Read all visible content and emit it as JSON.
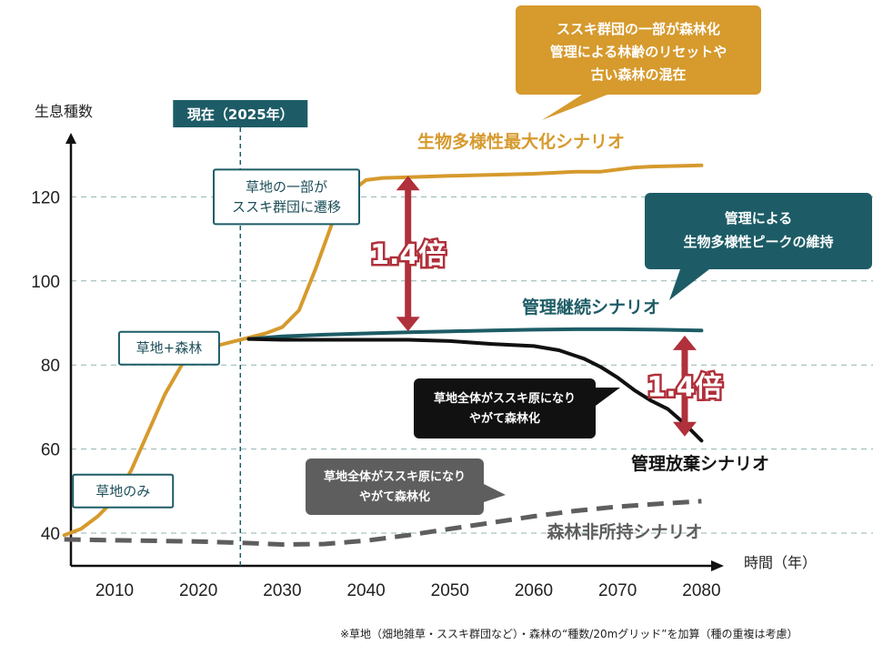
{
  "chart_data": {
    "type": "line",
    "ylabel": "生息種数",
    "xlabel": "時間（年）",
    "xticks": [
      2010,
      2020,
      2030,
      2040,
      2050,
      2060,
      2070,
      2080
    ],
    "yticks": [
      40,
      60,
      80,
      100,
      120
    ],
    "xlim": [
      2004,
      2084
    ],
    "ylim": [
      34,
      134
    ],
    "grid": "horizontal-dashed",
    "colors": {
      "maximize": "#d69a2d",
      "continue": "#1d5c66",
      "abandon": "#111111",
      "nonowner": "#5e5e5e",
      "ratio": "#b0303b"
    },
    "series": [
      {
        "name": "生物多様性最大化シナリオ",
        "style": "solid",
        "x": [
          2004,
          2006,
          2008,
          2010,
          2012,
          2014,
          2016,
          2018,
          2020,
          2022,
          2024,
          2026,
          2028,
          2030,
          2032,
          2034,
          2036,
          2038,
          2040,
          2042,
          2044,
          2050,
          2060,
          2065,
          2068,
          2070,
          2072,
          2074,
          2080
        ],
        "y": [
          39.5,
          41,
          44,
          48,
          55,
          64,
          73,
          80,
          83,
          84.5,
          85.5,
          86.5,
          87.5,
          89,
          93,
          103,
          114,
          121,
          124,
          124.5,
          124.6,
          125,
          125.5,
          126,
          126,
          126.5,
          127,
          127.2,
          127.5
        ]
      },
      {
        "name": "管理継続シナリオ",
        "style": "solid",
        "x": [
          2026,
          2030,
          2035,
          2040,
          2045,
          2050,
          2055,
          2060,
          2065,
          2070,
          2075,
          2080
        ],
        "y": [
          86.2,
          86.8,
          87.2,
          87.5,
          87.8,
          88,
          88.2,
          88.4,
          88.5,
          88.5,
          88.4,
          88.2
        ]
      },
      {
        "name": "管理放棄シナリオ",
        "style": "solid",
        "x": [
          2026,
          2030,
          2035,
          2040,
          2045,
          2050,
          2055,
          2060,
          2063,
          2066,
          2068,
          2070,
          2072,
          2074,
          2076,
          2078,
          2080
        ],
        "y": [
          86.2,
          86,
          86,
          86,
          86,
          85.7,
          85,
          84.5,
          83.5,
          81.5,
          79.5,
          77,
          74,
          71.5,
          69.5,
          66,
          62
        ]
      },
      {
        "name": "森林非所持シナリオ",
        "style": "dashed",
        "x": [
          2004,
          2010,
          2020,
          2025,
          2030,
          2035,
          2040,
          2045,
          2050,
          2055,
          2060,
          2065,
          2070,
          2075,
          2080
        ],
        "y": [
          38.5,
          38.3,
          38,
          37.7,
          37.3,
          37.4,
          38.2,
          39.5,
          41,
          42.5,
          44,
          45.3,
          46.3,
          47,
          47.6
        ]
      }
    ],
    "current_year": 2025,
    "current_label": "現在（2025年）",
    "ratios": [
      {
        "label": "1.4倍",
        "x": 2045,
        "y_from": 88,
        "y_to": 125
      },
      {
        "label": "1.4倍",
        "x": 2078,
        "y_from": 63,
        "y_to": 87
      }
    ],
    "stage_labels": [
      {
        "text": "草地のみ",
        "x": 2011,
        "y": 50
      },
      {
        "text": "草地+森林",
        "x": 2016.5,
        "y": 84
      },
      {
        "text": "草地の一部が\nススキ群団に遷移",
        "x": 2030.5,
        "y": 120
      }
    ],
    "callouts": [
      {
        "text": "ススキ群団の一部が森林化\n管理による林齢のリセットや\n古い森林の混在",
        "color": "#d69a2d",
        "target": "maximize"
      },
      {
        "text": "管理による\n生物多様性ピークの維持",
        "color": "#1d5c66",
        "target": "continue"
      },
      {
        "text": "草地全体がススキ原になり\nやがて森林化",
        "color": "#111111",
        "target": "abandon"
      },
      {
        "text": "草地全体がススキ原になり\nやがて森林化",
        "color": "#5e5e5e",
        "target": "nonowner"
      }
    ],
    "footnote": "※草地（畑地雑草・ススキ群団など）・森林の“種数/20mグリッド”を加算（種の重複は考慮）"
  }
}
